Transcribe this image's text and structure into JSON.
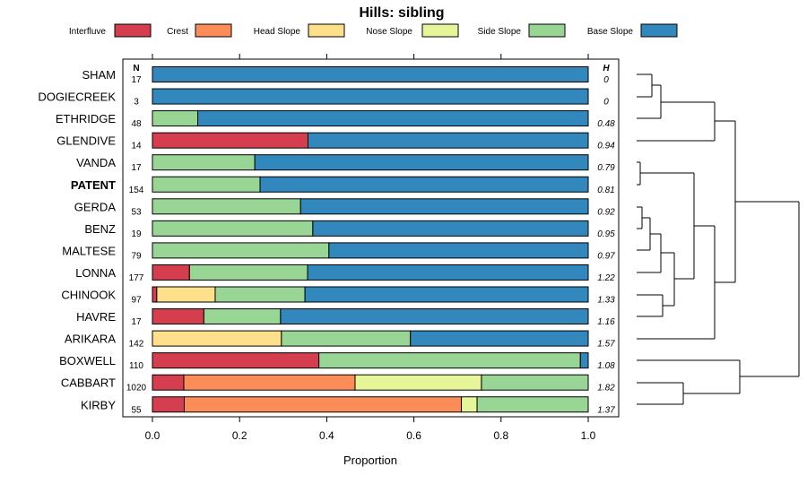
{
  "chart_data": {
    "type": "bar",
    "orientation": "horizontal",
    "stacked": true,
    "title": "Hills: sibling",
    "xlabel": "Proportion",
    "ylabel": "",
    "xlim": [
      0,
      1
    ],
    "xticks": [
      "0.0",
      "0.2",
      "0.4",
      "0.6",
      "0.8",
      "1.0"
    ],
    "n_header": "N",
    "h_header": "H",
    "legend_position": "top",
    "series": [
      {
        "name": "Interfluve",
        "color": "#d53e4f"
      },
      {
        "name": "Crest",
        "color": "#fc8d59"
      },
      {
        "name": "Head Slope",
        "color": "#fee08b"
      },
      {
        "name": "Nose Slope",
        "color": "#e6f598"
      },
      {
        "name": "Side Slope",
        "color": "#99d594"
      },
      {
        "name": "Base Slope",
        "color": "#3288bd"
      }
    ],
    "rows": [
      {
        "name": "SHAM",
        "bold": false,
        "n": "17",
        "h": "0",
        "values": [
          0,
          0,
          0,
          0,
          0,
          1.0
        ]
      },
      {
        "name": "DOGIECREEK",
        "bold": false,
        "n": "3",
        "h": "0",
        "values": [
          0,
          0,
          0,
          0,
          0,
          1.0
        ]
      },
      {
        "name": "ETHRIDGE",
        "bold": false,
        "n": "48",
        "h": "0.48",
        "values": [
          0,
          0,
          0,
          0,
          0.104,
          0.896
        ]
      },
      {
        "name": "GLENDIVE",
        "bold": false,
        "n": "14",
        "h": "0.94",
        "values": [
          0.357,
          0,
          0,
          0,
          0,
          0.643
        ]
      },
      {
        "name": "VANDA",
        "bold": false,
        "n": "17",
        "h": "0.79",
        "values": [
          0,
          0,
          0,
          0,
          0.235,
          0.765
        ]
      },
      {
        "name": "PATENT",
        "bold": true,
        "n": "154",
        "h": "0.81",
        "values": [
          0,
          0,
          0,
          0,
          0.247,
          0.753
        ]
      },
      {
        "name": "GERDA",
        "bold": false,
        "n": "53",
        "h": "0.92",
        "values": [
          0,
          0,
          0,
          0,
          0.34,
          0.66
        ]
      },
      {
        "name": "BENZ",
        "bold": false,
        "n": "19",
        "h": "0.95",
        "values": [
          0,
          0,
          0,
          0,
          0.368,
          0.632
        ]
      },
      {
        "name": "MALTESE",
        "bold": false,
        "n": "79",
        "h": "0.97",
        "values": [
          0,
          0,
          0,
          0,
          0.405,
          0.595
        ]
      },
      {
        "name": "LONNA",
        "bold": false,
        "n": "177",
        "h": "1.22",
        "values": [
          0.085,
          0,
          0,
          0,
          0.271,
          0.644
        ]
      },
      {
        "name": "CHINOOK",
        "bold": false,
        "n": "97",
        "h": "1.33",
        "values": [
          0.01,
          0,
          0.134,
          0,
          0.206,
          0.65
        ]
      },
      {
        "name": "HAVRE",
        "bold": false,
        "n": "17",
        "h": "1.16",
        "values": [
          0.118,
          0,
          0,
          0,
          0.176,
          0.706
        ]
      },
      {
        "name": "ARIKARA",
        "bold": false,
        "n": "142",
        "h": "1.57",
        "values": [
          0,
          0,
          0.296,
          0,
          0.296,
          0.408
        ]
      },
      {
        "name": "BOXWELL",
        "bold": false,
        "n": "110",
        "h": "1.08",
        "values": [
          0.382,
          0,
          0,
          0,
          0.6,
          0.018
        ]
      },
      {
        "name": "CABBART",
        "bold": false,
        "n": "1020",
        "h": "1.82",
        "values": [
          0.072,
          0.393,
          0,
          0.29,
          0.245,
          0
        ]
      },
      {
        "name": "KIRBY",
        "bold": false,
        "n": "55",
        "h": "1.37",
        "values": [
          0.073,
          0.636,
          0,
          0.036,
          0.255,
          0
        ]
      }
    ],
    "dendrogram": "tree of row similarity drawn on the right side"
  }
}
